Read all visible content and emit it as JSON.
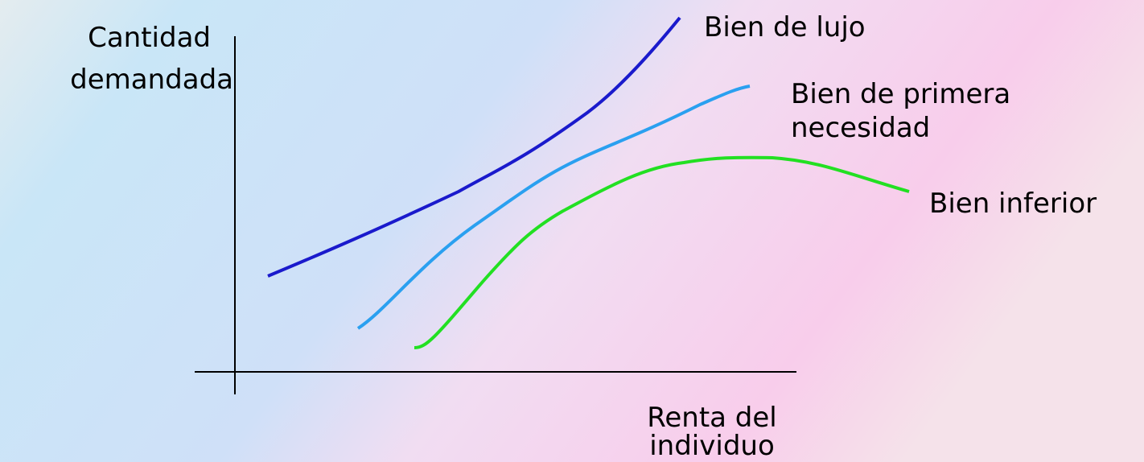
{
  "y_axis_label": {
    "lines": [
      "Cantidad",
      "demandada"
    ]
  },
  "x_axis_label": {
    "lines": [
      "Renta del",
      "individuo"
    ]
  },
  "curves": [
    {
      "label_lines": [
        "Bien de lujo"
      ]
    },
    {
      "label_lines": [
        "Bien de primera",
        "necesidad"
      ]
    },
    {
      "label_lines": [
        "Bien inferior"
      ]
    }
  ]
}
